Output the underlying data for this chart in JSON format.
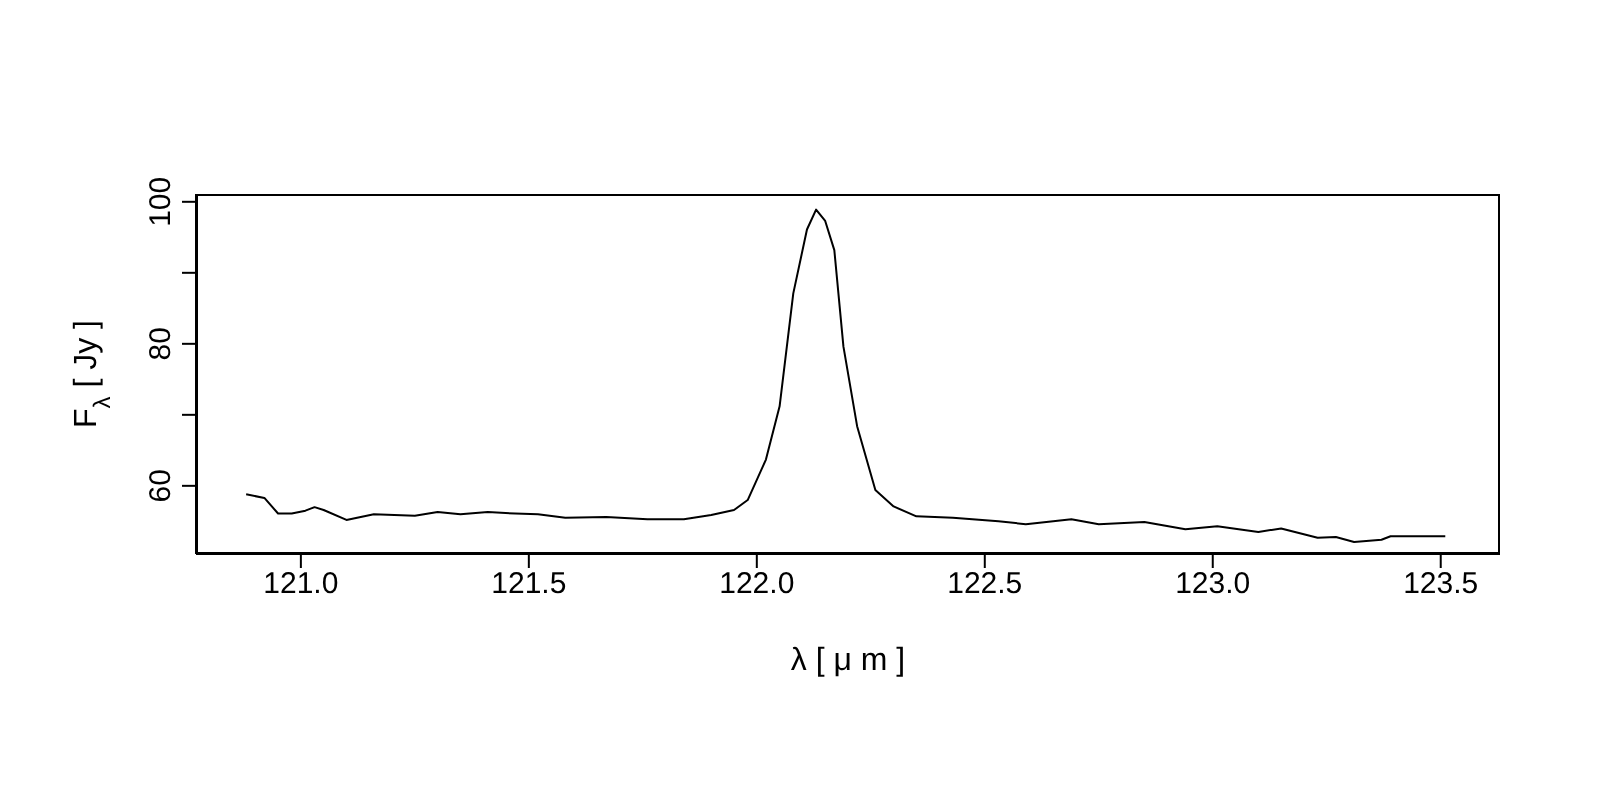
{
  "chart_data": {
    "type": "line",
    "xlabel": "λ [ μ m ]",
    "ylabel": "F$_{λ}$ [ Jy ]",
    "xlim": [
      120.77,
      123.63
    ],
    "ylim": [
      50.4,
      101.1
    ],
    "xticks": [
      {
        "value": 121,
        "label": "121.0"
      },
      {
        "value": 121.5,
        "label": "121.5"
      },
      {
        "value": 122,
        "label": "122.0"
      },
      {
        "value": 122.5,
        "label": "122.5"
      },
      {
        "value": 123,
        "label": "123.0"
      },
      {
        "value": 123.5,
        "label": "123.5"
      }
    ],
    "yticks": [
      60,
      {
        "value": 70,
        "label": null
      },
      80,
      {
        "value": 90,
        "label": null
      },
      100
    ],
    "grid": false,
    "marker": "none",
    "line_style": "solid",
    "series": [
      {
        "color": "#000000",
        "x": [
          120.88,
          120.92,
          120.95,
          120.98,
          121.01,
          121.03,
          121.05,
          121.1,
          121.16,
          121.25,
          121.3,
          121.35,
          121.41,
          121.47,
          121.52,
          121.58,
          121.67,
          121.76,
          121.84,
          121.9,
          121.95,
          121.98,
          122.02,
          122.05,
          122.08,
          122.11,
          122.13,
          122.15,
          122.17,
          122.19,
          122.22,
          122.26,
          122.3,
          122.35,
          122.43,
          122.53,
          122.59,
          122.69,
          122.75,
          122.85,
          122.94,
          123.01,
          123.1,
          123.15,
          123.23,
          123.27,
          123.31,
          123.37,
          123.39,
          123.51
        ],
        "values": [
          58.8,
          58.3,
          56.1,
          56.1,
          56.5,
          57.0,
          56.6,
          55.2,
          56.0,
          55.8,
          56.3,
          56.0,
          56.3,
          56.1,
          56.0,
          55.5,
          55.6,
          55.3,
          55.3,
          55.9,
          56.6,
          58.0,
          63.7,
          71.2,
          87.1,
          96.1,
          98.9,
          97.3,
          93.2,
          79.6,
          68.4,
          59.4,
          57.1,
          55.7,
          55.5,
          55.0,
          54.6,
          55.3,
          54.6,
          54.9,
          53.9,
          54.3,
          53.5,
          54.0,
          52.7,
          52.8,
          52.1,
          52.4,
          52.9,
          52.9
        ]
      }
    ]
  }
}
